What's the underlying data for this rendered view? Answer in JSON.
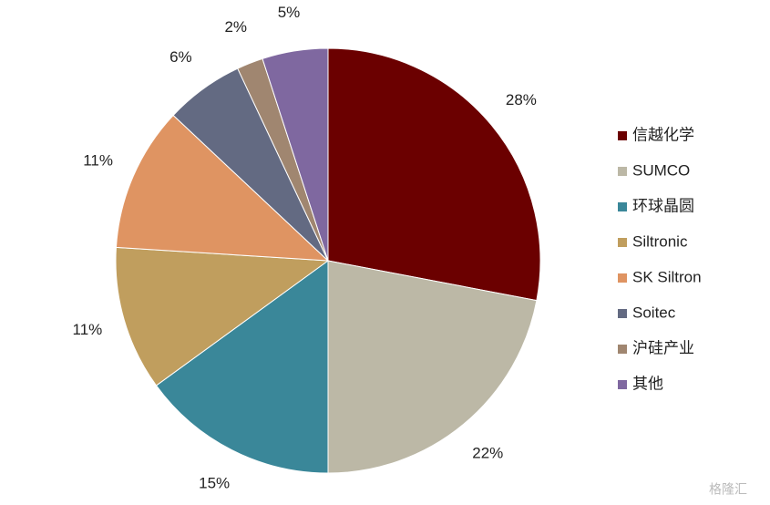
{
  "chart_data": {
    "type": "pie",
    "categories": [
      "信越化学",
      "SUMCO",
      "环球晶圆",
      "Siltronic",
      "SK Siltron",
      "Soitec",
      "沪硅产业",
      "其他"
    ],
    "values": [
      28,
      22,
      15,
      11,
      11,
      6,
      2,
      5
    ],
    "value_labels": [
      "28%",
      "22%",
      "15%",
      "11%",
      "11%",
      "6%",
      "2%",
      "5%"
    ],
    "colors": [
      "#6b0000",
      "#bcb8a6",
      "#3a8799",
      "#c09e5e",
      "#df9462",
      "#636a82",
      "#a08670",
      "#7f68a0"
    ],
    "legend": "right",
    "watermark": "格隆汇"
  }
}
